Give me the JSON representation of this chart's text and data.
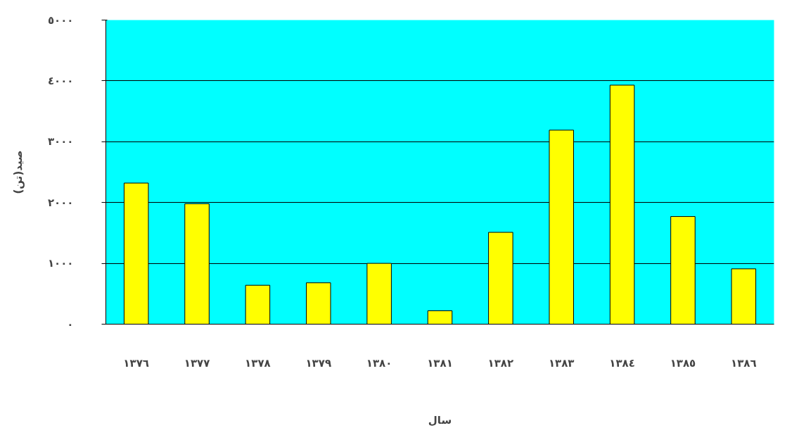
{
  "chart_data": {
    "type": "bar",
    "xlabel": "سال",
    "ylabel": "صید(تن)",
    "categories": [
      "١٣٧٦",
      "١٣٧٧",
      "١٣٧٨",
      "١٣٧٩",
      "١٣٨٠",
      "١٣٨١",
      "١٣٨٢",
      "١٣٨٣",
      "١٣٨٤",
      "١٣٨٥",
      "١٣٨٦"
    ],
    "values": [
      2320,
      1980,
      640,
      680,
      1000,
      220,
      1510,
      3190,
      3930,
      1770,
      910
    ],
    "color": "#ffff00",
    "ylim": [
      0,
      5000
    ],
    "yticks": [
      {
        "value": 0,
        "label": "٠"
      },
      {
        "value": 1000,
        "label": "١٠٠٠"
      },
      {
        "value": 2000,
        "label": "٢٠٠٠"
      },
      {
        "value": 3000,
        "label": "٣٠٠٠"
      },
      {
        "value": 4000,
        "label": "٤٠٠٠"
      },
      {
        "value": 5000,
        "label": "٥٠٠٠"
      }
    ],
    "grid": "y"
  }
}
